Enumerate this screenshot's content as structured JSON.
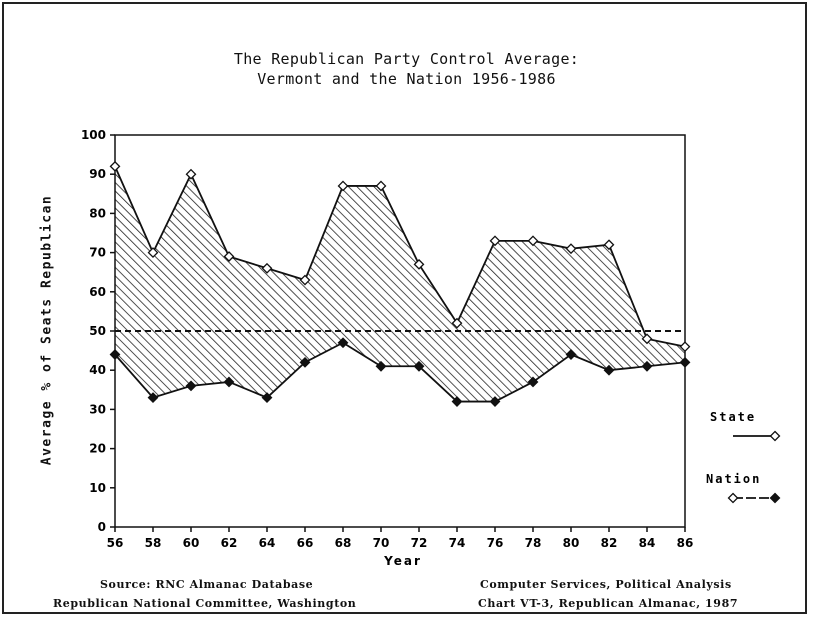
{
  "title_line1": "The Republican Party Control Average:",
  "title_line2": "Vermont and the Nation 1956-1986",
  "ylabel": "Average % of Seats Republican",
  "xlabel": "Year",
  "footer": {
    "source_line1": "Source: RNC Almanac Database",
    "source_line2": "Republican National Committee, Washington",
    "credit_line1": "Computer Services, Political Analysis",
    "credit_line2": "Chart VT-3, Republican Almanac, 1987"
  },
  "legend": {
    "state_label": "State",
    "nation_label": "Nation"
  },
  "colors": {
    "line": "#111111",
    "hatch": "#222222",
    "background": "#ffffff"
  },
  "chart_data": {
    "type": "area",
    "title": "The Republican Party Control Average: Vermont and the Nation 1956-1986",
    "xlabel": "Year",
    "ylabel": "Average % of Seats Republican",
    "x": [
      "56",
      "58",
      "60",
      "62",
      "64",
      "66",
      "68",
      "70",
      "72",
      "74",
      "76",
      "78",
      "80",
      "82",
      "84",
      "86"
    ],
    "xlim": [
      56,
      86
    ],
    "ylim": [
      0,
      100
    ],
    "yticks": [
      0,
      10,
      20,
      30,
      40,
      50,
      60,
      70,
      80,
      90,
      100
    ],
    "reference_line": 50,
    "fill_between_series": true,
    "legend_position": "right",
    "series": [
      {
        "name": "State",
        "marker": "open-diamond",
        "values": [
          92,
          70,
          90,
          69,
          66,
          63,
          87,
          87,
          67,
          52,
          73,
          73,
          71,
          72,
          48,
          46
        ]
      },
      {
        "name": "Nation",
        "marker": "filled-diamond",
        "values": [
          44,
          33,
          36,
          37,
          33,
          42,
          47,
          41,
          41,
          32,
          32,
          37,
          44,
          40,
          41,
          42
        ]
      }
    ]
  }
}
